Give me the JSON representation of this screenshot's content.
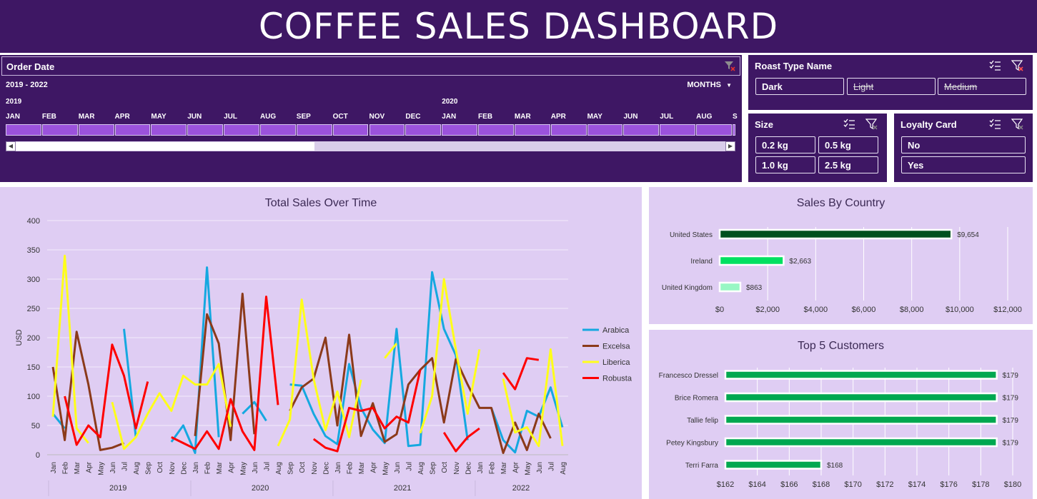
{
  "header": {
    "title": "COFFEE SALES DASHBOARD"
  },
  "timeline": {
    "title": "Order Date",
    "range_label": "2019 - 2022",
    "level_label": "MONTHS",
    "years": [
      "2019",
      "2020"
    ],
    "months": [
      "JAN",
      "FEB",
      "MAR",
      "APR",
      "MAY",
      "JUN",
      "JUL",
      "AUG",
      "SEP",
      "OCT",
      "NOV",
      "DEC",
      "JAN",
      "FEB",
      "MAR",
      "APR",
      "MAY",
      "JUN",
      "JUL",
      "AUG",
      "S"
    ],
    "clear_icon": "filter-clear-icon"
  },
  "roast_slicer": {
    "title": "Roast Type Name",
    "options": [
      "Dark",
      "Light",
      "Medium"
    ]
  },
  "size_slicer": {
    "title": "Size",
    "options": [
      "0.2 kg",
      "0.5 kg",
      "1.0 kg",
      "2.5 kg"
    ]
  },
  "loyalty_slicer": {
    "title": "Loyalty Card",
    "options": [
      "No",
      "Yes"
    ]
  },
  "colors": {
    "panel_dark": "#3e1764",
    "panel_light": "#dfcdf3",
    "slicer_selected": "#9b52dc"
  },
  "chart_data": [
    {
      "type": "line",
      "title": "Total Sales Over Time",
      "ylabel": "USD",
      "ylim": [
        0,
        400
      ],
      "yticks": [
        0,
        50,
        100,
        150,
        200,
        250,
        300,
        350,
        400
      ],
      "x_month_labels": [
        "Jan",
        "Feb",
        "Mar",
        "Apr",
        "May",
        "Jun",
        "Jul",
        "Aug",
        "Sep",
        "Oct",
        "Nov",
        "Dec",
        "Jan",
        "Feb",
        "Mar",
        "Apr",
        "May",
        "Jun",
        "Jul",
        "Aug",
        "Sep",
        "Oct",
        "Nov",
        "Dec",
        "Jan",
        "Feb",
        "Mar",
        "Apr",
        "May",
        "Jun",
        "Jul",
        "Aug",
        "Sep",
        "Oct",
        "Nov",
        "Dec",
        "Jan",
        "Feb",
        "Mar",
        "Apr",
        "May",
        "Jun",
        "Jul",
        "Aug"
      ],
      "x_year_labels": [
        {
          "label": "2019",
          "start": 0,
          "end": 11
        },
        {
          "label": "2020",
          "start": 12,
          "end": 23
        },
        {
          "label": "2021",
          "start": 24,
          "end": 35
        },
        {
          "label": "2022",
          "start": 36,
          "end": 43
        }
      ],
      "legend_position": "right",
      "series": [
        {
          "name": "Arabica",
          "color": "#15a8e0",
          "values": [
            70,
            45,
            null,
            null,
            null,
            null,
            215,
            30,
            null,
            null,
            22,
            50,
            3,
            320,
            30,
            null,
            70,
            90,
            58,
            null,
            120,
            118,
            70,
            32,
            18,
            155,
            80,
            43,
            20,
            215,
            15,
            17,
            312,
            215,
            170,
            25,
            null,
            80,
            25,
            4,
            75,
            65,
            115,
            47
          ]
        },
        {
          "name": "Excelsa",
          "color": "#8b3a1a",
          "values": [
            150,
            25,
            210,
            120,
            8,
            12,
            20,
            null,
            null,
            null,
            null,
            null,
            32,
            240,
            190,
            25,
            275,
            35,
            null,
            null,
            75,
            115,
            130,
            200,
            50,
            205,
            32,
            88,
            22,
            35,
            120,
            145,
            165,
            55,
            163,
            120,
            80,
            80,
            3,
            55,
            8,
            70,
            28,
            null
          ]
        },
        {
          "name": "Liberica",
          "color": "#ffff1a",
          "values": [
            65,
            340,
            45,
            20,
            null,
            90,
            10,
            30,
            70,
            105,
            75,
            135,
            120,
            120,
            155,
            48,
            null,
            null,
            null,
            15,
            60,
            265,
            130,
            42,
            108,
            30,
            128,
            null,
            165,
            190,
            null,
            37,
            100,
            300,
            180,
            70,
            180,
            null,
            130,
            38,
            47,
            15,
            180,
            15
          ]
        },
        {
          "name": "Robusta",
          "color": "#ff0000",
          "values": [
            null,
            100,
            17,
            50,
            30,
            188,
            135,
            45,
            125,
            null,
            30,
            20,
            10,
            40,
            10,
            95,
            40,
            8,
            270,
            85,
            null,
            null,
            27,
            12,
            6,
            80,
            75,
            80,
            45,
            65,
            55,
            145,
            null,
            38,
            6,
            30,
            45,
            null,
            140,
            112,
            165,
            162,
            null,
            null
          ]
        }
      ]
    },
    {
      "type": "bar",
      "orientation": "horizontal",
      "title": "Sales By Country",
      "categories": [
        "United States",
        "Ireland",
        "United Kingdom"
      ],
      "values": [
        9654,
        2663,
        863
      ],
      "value_labels": [
        "$9,654",
        "$2,663",
        "$863"
      ],
      "bar_colors": [
        "#00501e",
        "#00e060",
        "#98f7c4"
      ],
      "xlim": [
        0,
        12000
      ],
      "xticks": [
        "$0",
        "$2,000",
        "$4,000",
        "$6,000",
        "$8,000",
        "$10,000",
        "$12,000"
      ]
    },
    {
      "type": "bar",
      "orientation": "horizontal",
      "title": "Top 5 Customers",
      "categories": [
        "Francesco Dressel",
        "Brice Romera",
        "Tallie felip",
        "Petey Kingsbury",
        "Terri Farra"
      ],
      "values": [
        179,
        179,
        179,
        179,
        168
      ],
      "value_labels": [
        "$179",
        "$179",
        "$179",
        "$179",
        "$168"
      ],
      "bar_color": "#00a850",
      "xlim": [
        162,
        180
      ],
      "xticks": [
        "$162",
        "$164",
        "$166",
        "$168",
        "$170",
        "$172",
        "$174",
        "$176",
        "$178",
        "$180"
      ]
    }
  ]
}
